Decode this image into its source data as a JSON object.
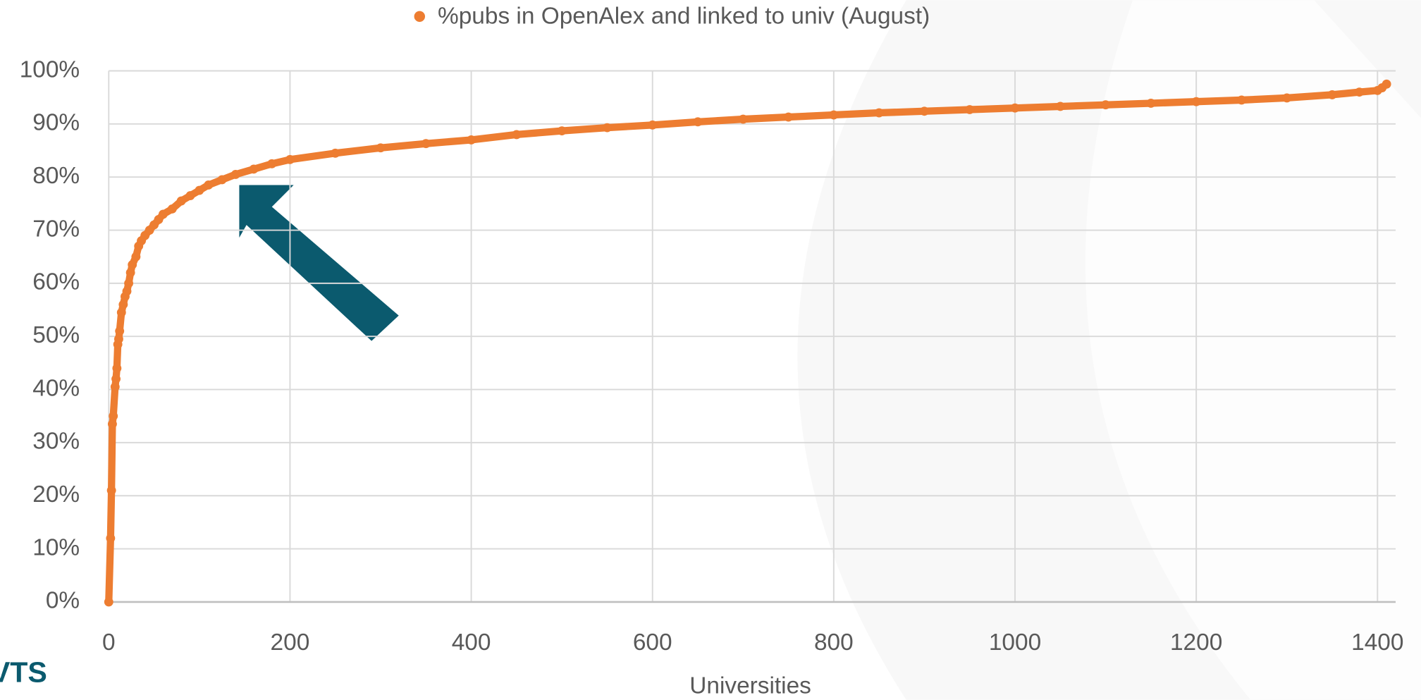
{
  "chart_data": {
    "type": "scatter",
    "series": [
      {
        "name": "%pubs in OpenAlex and linked to univ (August)",
        "color": "#ed7d31",
        "x": [
          0,
          2,
          3,
          4,
          5,
          7,
          8,
          9,
          10,
          11,
          12,
          14,
          16,
          18,
          20,
          22,
          24,
          26,
          30,
          33,
          36,
          40,
          45,
          50,
          55,
          60,
          70,
          80,
          90,
          100,
          110,
          125,
          140,
          160,
          180,
          200,
          250,
          300,
          350,
          400,
          450,
          500,
          550,
          600,
          650,
          700,
          750,
          800,
          850,
          900,
          950,
          1000,
          1050,
          1100,
          1150,
          1200,
          1250,
          1300,
          1350,
          1380,
          1400,
          1405,
          1410
        ],
        "values": [
          0,
          12,
          21,
          33.5,
          35,
          40.5,
          42,
          44,
          48.5,
          49.5,
          51,
          54.5,
          56,
          57.5,
          58.5,
          60,
          62,
          63.5,
          65,
          67,
          68,
          69,
          70,
          71,
          72,
          73,
          74,
          75.5,
          76.5,
          77.5,
          78.5,
          79.5,
          80.5,
          81.5,
          82.5,
          83.3,
          84.5,
          85.5,
          86.3,
          87,
          88,
          88.7,
          89.3,
          89.8,
          90.4,
          90.9,
          91.3,
          91.7,
          92.1,
          92.4,
          92.7,
          93,
          93.3,
          93.6,
          93.9,
          94.2,
          94.5,
          94.9,
          95.5,
          96,
          96.3,
          96.8,
          97.5
        ]
      }
    ],
    "x_label": "Universities",
    "xlim": [
      0,
      1410
    ],
    "xticks": [
      0,
      200,
      400,
      600,
      800,
      1000,
      1200,
      1400
    ],
    "ylim": [
      0,
      100
    ],
    "yticks": [
      {
        "value": 0,
        "label": "0%"
      },
      {
        "value": 10,
        "label": "10%"
      },
      {
        "value": 20,
        "label": "20%"
      },
      {
        "value": 30,
        "label": "30%"
      },
      {
        "value": 40,
        "label": "40%"
      },
      {
        "value": 50,
        "label": "50%"
      },
      {
        "value": 60,
        "label": "60%"
      },
      {
        "value": 70,
        "label": "70%"
      },
      {
        "value": 80,
        "label": "80%"
      },
      {
        "value": 90,
        "label": "90%"
      },
      {
        "value": 100,
        "label": "100%"
      }
    ],
    "grid": true,
    "legend": "top"
  },
  "logo": "VTS"
}
